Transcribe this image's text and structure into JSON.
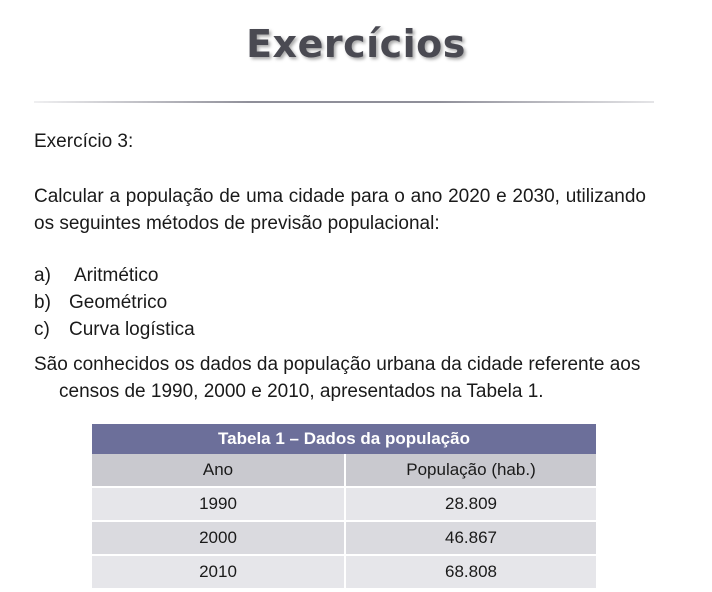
{
  "slide": {
    "title": "Exercícios"
  },
  "exercise": {
    "heading": "Exercício 3:",
    "statement": "Calcular a população de uma cidade para o ano 2020 e 2030, utilizando os seguintes métodos de previsão populacional:",
    "options": [
      {
        "marker": "a)",
        "label": "Aritmético"
      },
      {
        "marker": "b)",
        "label": "Geométrico"
      },
      {
        "marker": "c)",
        "label": "Curva logística"
      }
    ],
    "intro": "São conhecidos os dados da população urbana da cidade referente aos censos de 1990, 2000 e 2010, apresentados na Tabela 1."
  },
  "table": {
    "caption": "Tabela 1 – Dados da população",
    "headers": [
      "Ano",
      "População (hab.)"
    ],
    "rows": [
      [
        "1990",
        "28.809"
      ],
      [
        "2000",
        "46.867"
      ],
      [
        "2010",
        "68.808"
      ]
    ]
  },
  "colors": {
    "table_header": "#6c6f9a",
    "title": "#4a4a52"
  }
}
